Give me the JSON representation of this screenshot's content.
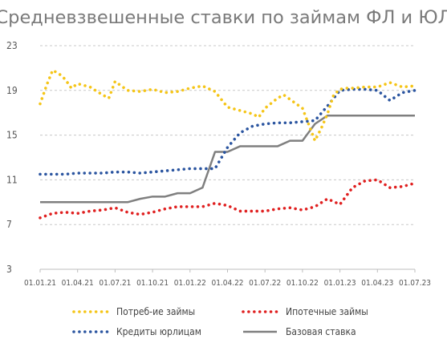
{
  "chart_data": {
    "type": "line",
    "title": "Средневзвешенные ставки по займам ФЛ и ЮЛ",
    "ylim": [
      3,
      23
    ],
    "yticks": [
      "3",
      "7",
      "11",
      "15",
      "19",
      "23"
    ],
    "yticks_values": [
      3,
      7,
      11,
      15,
      19,
      23
    ],
    "xlim": [
      0,
      30
    ],
    "x_tick_labels": [
      "01.01.21",
      "01.04.21",
      "01.07.21",
      "01.10.21",
      "01.01.22",
      "01.04.22",
      "01.07.22",
      "01.10.22",
      "01.01.23",
      "01.04.23",
      "01.07.23"
    ],
    "x_tick_positions": [
      0,
      3,
      6,
      9,
      12,
      15,
      18,
      21,
      24,
      27,
      30
    ],
    "grid": "horizontal dashed",
    "legend_position": "bottom",
    "series": [
      {
        "name": "Потреб-ие займы",
        "color": "#f5c518",
        "style": "dotted",
        "x": [
          0,
          0.5,
          1,
          1.5,
          2,
          2.5,
          3,
          4,
          5,
          5.5,
          6,
          7,
          8,
          9,
          10,
          11,
          12,
          13,
          14,
          15,
          16,
          17,
          17.5,
          18,
          19,
          19.5,
          20,
          21,
          22,
          22.5,
          23,
          23.5,
          24,
          24.5,
          25,
          26,
          27,
          28,
          29,
          30
        ],
        "y": [
          17.8,
          19.4,
          20.8,
          20.5,
          20.0,
          19.2,
          19.6,
          19.3,
          18.6,
          18.3,
          19.8,
          19.0,
          18.9,
          19.1,
          18.8,
          18.9,
          19.2,
          19.4,
          18.9,
          17.5,
          17.2,
          16.9,
          16.6,
          17.4,
          18.3,
          18.6,
          18.2,
          17.4,
          14.5,
          15.6,
          16.9,
          18.6,
          19.1,
          19.2,
          19.2,
          19.3,
          19.3,
          19.7,
          19.3,
          19.4
        ]
      },
      {
        "name": "Ипотечные займы",
        "color": "#e02020",
        "style": "dotted",
        "x": [
          0,
          1,
          2,
          3,
          4,
          5,
          6,
          7,
          8,
          9,
          10,
          11,
          12,
          13,
          14,
          15,
          16,
          17,
          18,
          19,
          20,
          21,
          22,
          23,
          24,
          25,
          26,
          27,
          28,
          29,
          30
        ],
        "y": [
          7.6,
          8.0,
          8.1,
          8.0,
          8.2,
          8.3,
          8.5,
          8.1,
          7.9,
          8.1,
          8.4,
          8.6,
          8.6,
          8.6,
          8.9,
          8.7,
          8.2,
          8.2,
          8.2,
          8.4,
          8.5,
          8.3,
          8.6,
          9.3,
          8.8,
          10.3,
          10.9,
          11.0,
          10.3,
          10.4,
          10.7
        ]
      },
      {
        "name": "Кредиты юрлицам",
        "color": "#2b55a0",
        "style": "dotted",
        "x": [
          0,
          1,
          2,
          3,
          4,
          5,
          6,
          7,
          8,
          9,
          10,
          11,
          12,
          13,
          14,
          15,
          16,
          17,
          18,
          19,
          20,
          21,
          22,
          23,
          24,
          25,
          26,
          27,
          28,
          29,
          30
        ],
        "y": [
          11.5,
          11.5,
          11.5,
          11.6,
          11.6,
          11.6,
          11.7,
          11.7,
          11.6,
          11.7,
          11.8,
          11.9,
          12.0,
          12.0,
          12.0,
          13.9,
          15.2,
          15.8,
          16.0,
          16.1,
          16.1,
          16.2,
          16.3,
          17.6,
          19.0,
          19.1,
          19.1,
          19.0,
          18.1,
          18.8,
          19.0
        ]
      },
      {
        "name": "Базовая ставка",
        "color": "#7f7f7f",
        "style": "solid",
        "x": [
          0,
          1,
          2,
          3,
          4,
          5,
          6,
          7,
          8,
          9,
          10,
          11,
          12,
          13,
          14,
          15,
          16,
          17,
          18,
          19,
          20,
          21,
          22,
          23,
          24,
          25,
          26,
          27,
          28,
          29,
          30
        ],
        "y": [
          9.0,
          9.0,
          9.0,
          9.0,
          9.0,
          9.0,
          9.0,
          9.0,
          9.3,
          9.5,
          9.5,
          9.8,
          9.8,
          10.3,
          13.5,
          13.5,
          14.0,
          14.0,
          14.0,
          14.0,
          14.5,
          14.5,
          16.0,
          16.75,
          16.75,
          16.75,
          16.75,
          16.75,
          16.75,
          16.75,
          16.75
        ]
      }
    ]
  }
}
